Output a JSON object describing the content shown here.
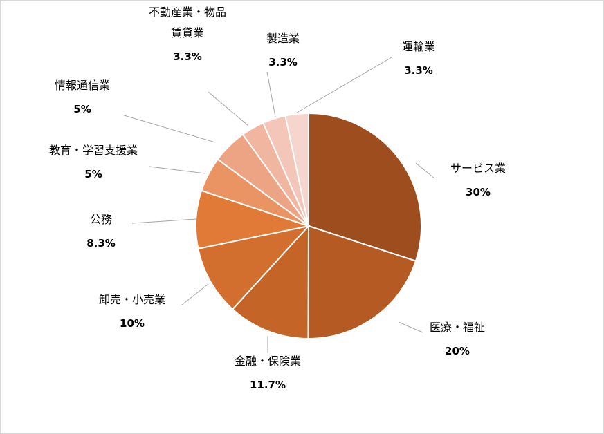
{
  "chart_data": {
    "type": "pie",
    "title": "",
    "slices": [
      {
        "label": "サービス業",
        "value": 30,
        "value_label": "30%",
        "color": "#9E4E1E"
      },
      {
        "label": "医療・福祉",
        "value": 20,
        "value_label": "20%",
        "color": "#B45A22"
      },
      {
        "label": "金融・保険業",
        "value": 11.7,
        "value_label": "11.7%",
        "color": "#C46527"
      },
      {
        "label": "卸売・小売業",
        "value": 10,
        "value_label": "10%",
        "color": "#D26E2E"
      },
      {
        "label": "公務",
        "value": 8.3,
        "value_label": "8.3%",
        "color": "#E07A36"
      },
      {
        "label": "教育・学習支援業",
        "value": 5,
        "value_label": "5%",
        "color": "#EA9363"
      },
      {
        "label": "情報通信業",
        "value": 5,
        "value_label": "5%",
        "color": "#EDA484"
      },
      {
        "label": "不動産業・物品賃貸業",
        "value": 3.3,
        "value_label": "3.3%",
        "color": "#F0B6A0",
        "label_lines": [
          "不動産業・物品",
          "賃貸業"
        ]
      },
      {
        "label": "製造業",
        "value": 3.3,
        "value_label": "3.3%",
        "color": "#F3C6B9"
      },
      {
        "label": "運輸業",
        "value": 3.3,
        "value_label": "3.3%",
        "color": "#F5D5CD"
      }
    ],
    "start_angle": "12 o'clock",
    "direction": "clockwise",
    "legend": "none",
    "data_labels": "outside with leader lines"
  }
}
